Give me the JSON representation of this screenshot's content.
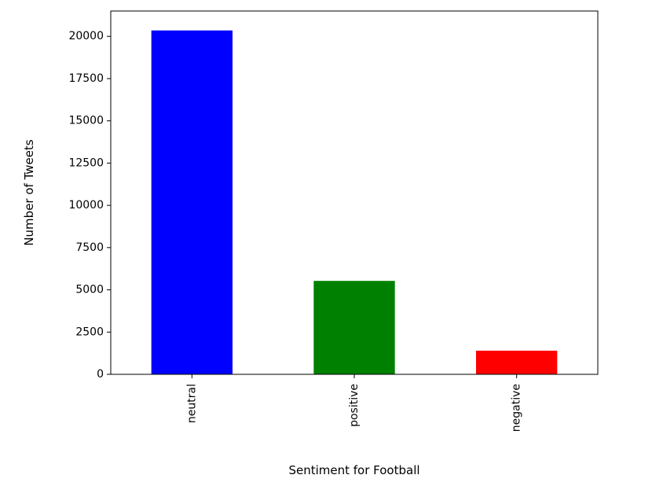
{
  "chart_data": {
    "type": "bar",
    "categories": [
      "neutral",
      "positive",
      "negative"
    ],
    "values": [
      20350,
      5530,
      1400
    ],
    "colors": [
      "#0000ff",
      "#008000",
      "#ff0000"
    ],
    "xlabel": "Sentiment for Football",
    "ylabel": "Number of Tweets",
    "ylim": [
      0,
      21500
    ],
    "yticks": [
      0,
      2500,
      5000,
      7500,
      10000,
      12500,
      15000,
      17500,
      20000
    ],
    "x_tick_rotation": "vertical",
    "grid": false,
    "legend": "none"
  }
}
